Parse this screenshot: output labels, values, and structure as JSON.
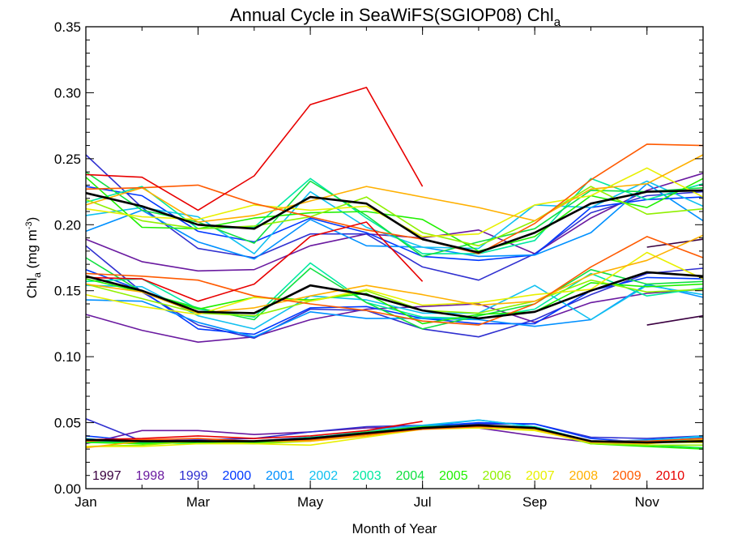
{
  "chart_data": {
    "type": "line",
    "title_main": "Annual Cycle in SeaWiFS(SGIOP08) Chl",
    "title_sub": "a",
    "xlabel": "Month of Year",
    "ylabel_main": "Chl",
    "ylabel_sub": "a",
    "ylabel_unit_a": " (mg m",
    "ylabel_unit_sup": "-3",
    "ylabel_unit_b": ")",
    "xlim": [
      1,
      12
    ],
    "ylim": [
      0,
      0.35
    ],
    "x_ticks": [
      {
        "value": 1,
        "label": "Jan"
      },
      {
        "value": 3,
        "label": "Mar"
      },
      {
        "value": 5,
        "label": "May"
      },
      {
        "value": 7,
        "label": "Jul"
      },
      {
        "value": 9,
        "label": "Sep"
      },
      {
        "value": 11,
        "label": "Nov"
      }
    ],
    "y_ticks": [
      {
        "value": 0.0,
        "label": "0.00"
      },
      {
        "value": 0.05,
        "label": "0.05"
      },
      {
        "value": 0.1,
        "label": "0.10"
      },
      {
        "value": 0.15,
        "label": "0.15"
      },
      {
        "value": 0.2,
        "label": "0.20"
      },
      {
        "value": 0.25,
        "label": "0.25"
      },
      {
        "value": 0.3,
        "label": "0.30"
      },
      {
        "value": 0.35,
        "label": "0.35"
      }
    ],
    "legend_position": "bottom",
    "colors": {
      "1997": "#3a0040",
      "1998": "#6a1aa0",
      "1999": "#3030d0",
      "2000": "#0038ff",
      "2001": "#0090ff",
      "2002": "#10c0f0",
      "2003": "#00e8a0",
      "2004": "#10e040",
      "2005": "#20f000",
      "2006": "#90f000",
      "2007": "#e8f000",
      "2008": "#ffb000",
      "2009": "#ff5a00",
      "2010": "#e80000",
      "mean": "#000000"
    },
    "series": [
      {
        "name": "1997",
        "upper": [
          null,
          null,
          null,
          null,
          null,
          null,
          null,
          null,
          null,
          null,
          0.183,
          0.189
        ],
        "middle": [
          null,
          null,
          null,
          null,
          null,
          null,
          null,
          null,
          null,
          null,
          0.124,
          0.131
        ],
        "lower": [
          null,
          null,
          null,
          null,
          null,
          null,
          null,
          null,
          null,
          null,
          0.036,
          0.035
        ]
      },
      {
        "name": "1998",
        "upper": [
          0.189,
          0.172,
          0.165,
          0.166,
          0.184,
          0.193,
          0.19,
          0.196,
          0.178,
          0.205,
          0.226,
          0.239
        ],
        "middle": [
          0.132,
          0.12,
          0.111,
          0.115,
          0.128,
          0.136,
          0.138,
          0.14,
          0.126,
          0.141,
          0.148,
          0.151
        ],
        "lower": [
          0.034,
          0.044,
          0.044,
          0.041,
          0.043,
          0.046,
          0.047,
          0.046,
          0.04,
          0.035,
          0.035,
          0.036
        ]
      },
      {
        "name": "1999",
        "upper": [
          0.253,
          0.213,
          0.182,
          0.175,
          0.193,
          0.193,
          0.168,
          0.158,
          0.178,
          0.209,
          0.222,
          0.225
        ],
        "middle": [
          0.184,
          0.149,
          0.124,
          0.114,
          0.136,
          0.135,
          0.121,
          0.115,
          0.128,
          0.147,
          0.163,
          0.167
        ],
        "lower": [
          0.053,
          0.036,
          0.037,
          0.038,
          0.043,
          0.047,
          0.048,
          0.049,
          0.049,
          0.039,
          0.038,
          0.04
        ]
      },
      {
        "name": "2000",
        "upper": [
          0.229,
          0.222,
          0.195,
          0.187,
          0.205,
          0.194,
          0.176,
          0.173,
          0.177,
          0.213,
          0.219,
          0.221
        ],
        "middle": [
          0.166,
          0.15,
          0.121,
          0.117,
          0.137,
          0.138,
          0.129,
          0.125,
          0.125,
          0.15,
          0.16,
          0.159
        ],
        "lower": [
          0.04,
          0.036,
          0.036,
          0.036,
          0.039,
          0.042,
          0.047,
          0.05,
          0.049,
          0.038,
          0.035,
          0.036
        ]
      },
      {
        "name": "2001",
        "upper": [
          0.195,
          0.211,
          0.187,
          0.174,
          0.204,
          0.184,
          0.183,
          0.176,
          0.177,
          0.194,
          0.231,
          0.203
        ],
        "middle": [
          0.143,
          0.142,
          0.126,
          0.115,
          0.134,
          0.129,
          0.129,
          0.128,
          0.123,
          0.128,
          0.155,
          0.145
        ],
        "lower": [
          0.037,
          0.035,
          0.035,
          0.034,
          0.038,
          0.041,
          0.047,
          0.052,
          0.047,
          0.035,
          0.037,
          0.039
        ]
      },
      {
        "name": "2002",
        "upper": [
          0.207,
          0.213,
          0.206,
          0.178,
          0.225,
          0.198,
          0.183,
          0.182,
          0.215,
          0.213,
          0.233,
          0.214
        ],
        "middle": [
          0.154,
          0.153,
          0.131,
          0.121,
          0.146,
          0.143,
          0.133,
          0.133,
          0.154,
          0.128,
          0.154,
          0.147
        ],
        "lower": [
          0.038,
          0.034,
          0.035,
          0.036,
          0.038,
          0.044,
          0.048,
          0.052,
          0.047,
          0.036,
          0.036,
          0.04
        ]
      },
      {
        "name": "2003",
        "upper": [
          0.217,
          0.229,
          0.197,
          0.198,
          0.235,
          0.205,
          0.178,
          0.178,
          0.188,
          0.235,
          0.219,
          0.231
        ],
        "middle": [
          0.157,
          0.159,
          0.136,
          0.13,
          0.171,
          0.141,
          0.13,
          0.129,
          0.136,
          0.163,
          0.146,
          0.152
        ],
        "lower": [
          0.036,
          0.035,
          0.034,
          0.035,
          0.039,
          0.042,
          0.046,
          0.048,
          0.047,
          0.036,
          0.036,
          0.037
        ]
      },
      {
        "name": "2004",
        "upper": [
          0.24,
          0.211,
          0.202,
          0.186,
          0.233,
          0.207,
          0.176,
          0.187,
          0.197,
          0.226,
          0.225,
          0.228
        ],
        "middle": [
          0.175,
          0.149,
          0.137,
          0.128,
          0.167,
          0.141,
          0.121,
          0.131,
          0.14,
          0.166,
          0.155,
          0.157
        ],
        "lower": [
          0.035,
          0.035,
          0.035,
          0.035,
          0.038,
          0.043,
          0.047,
          0.048,
          0.046,
          0.034,
          0.033,
          0.031
        ]
      },
      {
        "name": "2005",
        "upper": [
          0.236,
          0.198,
          0.197,
          0.205,
          0.209,
          0.21,
          0.204,
          0.18,
          0.191,
          0.222,
          0.213,
          0.235
        ],
        "middle": [
          0.159,
          0.149,
          0.136,
          0.145,
          0.143,
          0.148,
          0.125,
          0.132,
          0.134,
          0.156,
          0.153,
          0.155
        ],
        "lower": [
          0.035,
          0.034,
          0.035,
          0.035,
          0.037,
          0.042,
          0.047,
          0.047,
          0.046,
          0.034,
          0.032,
          0.03
        ]
      },
      {
        "name": "2006",
        "upper": [
          0.219,
          0.203,
          0.197,
          0.199,
          0.206,
          0.221,
          0.194,
          0.184,
          0.203,
          0.229,
          0.208,
          0.212
        ],
        "middle": [
          0.155,
          0.144,
          0.133,
          0.131,
          0.142,
          0.15,
          0.135,
          0.133,
          0.142,
          0.158,
          0.149,
          0.151
        ],
        "lower": [
          0.032,
          0.033,
          0.036,
          0.034,
          0.036,
          0.041,
          0.045,
          0.047,
          0.045,
          0.034,
          0.033,
          0.033
        ]
      },
      {
        "name": "2007",
        "upper": [
          0.212,
          0.206,
          0.204,
          0.215,
          0.211,
          0.214,
          0.191,
          0.193,
          0.215,
          0.222,
          0.243,
          0.221
        ],
        "middle": [
          0.147,
          0.138,
          0.132,
          0.145,
          0.142,
          0.151,
          0.139,
          0.141,
          0.147,
          0.151,
          0.179,
          0.159
        ],
        "lower": [
          0.032,
          0.032,
          0.034,
          0.034,
          0.033,
          0.039,
          0.045,
          0.046,
          0.044,
          0.035,
          0.035,
          0.035
        ]
      },
      {
        "name": "2008",
        "upper": [
          0.215,
          0.228,
          0.202,
          0.207,
          0.218,
          0.229,
          0.221,
          0.213,
          0.203,
          0.227,
          0.231,
          0.253
        ],
        "middle": [
          0.155,
          0.149,
          0.133,
          0.137,
          0.146,
          0.154,
          0.147,
          0.139,
          0.142,
          0.162,
          0.173,
          0.192
        ],
        "lower": [
          0.031,
          0.036,
          0.036,
          0.036,
          0.036,
          0.04,
          0.046,
          0.047,
          0.045,
          0.035,
          0.034,
          0.037
        ]
      },
      {
        "name": "2009",
        "upper": [
          0.227,
          0.228,
          0.23,
          0.216,
          0.206,
          0.196,
          0.189,
          0.178,
          0.201,
          0.234,
          0.261,
          0.26
        ],
        "middle": [
          0.163,
          0.161,
          0.158,
          0.146,
          0.14,
          0.135,
          0.127,
          0.124,
          0.14,
          0.168,
          0.191,
          0.175
        ],
        "lower": [
          0.036,
          0.037,
          0.038,
          0.036,
          0.037,
          0.041,
          0.045,
          0.047,
          0.046,
          0.036,
          0.036,
          0.038
        ]
      },
      {
        "name": "2010",
        "upper": [
          0.238,
          0.236,
          0.211,
          0.237,
          0.291,
          0.304,
          0.229,
          null,
          null,
          null,
          null,
          null
        ],
        "middle": [
          0.16,
          0.159,
          0.142,
          0.155,
          0.191,
          0.202,
          0.157,
          null,
          null,
          null,
          null,
          null
        ],
        "lower": [
          0.037,
          0.038,
          0.04,
          0.038,
          0.04,
          0.044,
          0.051,
          null,
          null,
          null,
          null,
          null
        ]
      },
      {
        "name": "mean",
        "upper": [
          0.224,
          0.214,
          0.2,
          0.197,
          0.221,
          0.216,
          0.189,
          0.179,
          0.194,
          0.216,
          0.225,
          0.226
        ],
        "middle": [
          0.161,
          0.15,
          0.134,
          0.133,
          0.154,
          0.147,
          0.135,
          0.129,
          0.134,
          0.15,
          0.164,
          0.161
        ],
        "lower": [
          0.037,
          0.036,
          0.036,
          0.036,
          0.038,
          0.042,
          0.046,
          0.048,
          0.046,
          0.036,
          0.035,
          0.036
        ]
      }
    ]
  }
}
